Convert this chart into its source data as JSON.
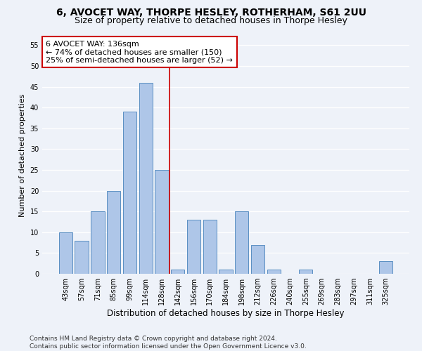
{
  "title1": "6, AVOCET WAY, THORPE HESLEY, ROTHERHAM, S61 2UU",
  "title2": "Size of property relative to detached houses in Thorpe Hesley",
  "xlabel": "Distribution of detached houses by size in Thorpe Hesley",
  "ylabel": "Number of detached properties",
  "categories": [
    "43sqm",
    "57sqm",
    "71sqm",
    "85sqm",
    "99sqm",
    "114sqm",
    "128sqm",
    "142sqm",
    "156sqm",
    "170sqm",
    "184sqm",
    "198sqm",
    "212sqm",
    "226sqm",
    "240sqm",
    "255sqm",
    "269sqm",
    "283sqm",
    "297sqm",
    "311sqm",
    "325sqm"
  ],
  "values": [
    10,
    8,
    15,
    20,
    39,
    46,
    25,
    1,
    13,
    13,
    1,
    15,
    7,
    1,
    0,
    1,
    0,
    0,
    0,
    0,
    3
  ],
  "bar_color": "#aec6e8",
  "bar_edge_color": "#5a8fc2",
  "vline_x": 6.5,
  "vline_color": "#cc0000",
  "annotation_line1": "6 AVOCET WAY: 136sqm",
  "annotation_line2": "← 74% of detached houses are smaller (150)",
  "annotation_line3": "25% of semi-detached houses are larger (52) →",
  "annotation_box_color": "#ffffff",
  "annotation_box_edge": "#cc0000",
  "ylim": [
    0,
    57
  ],
  "yticks": [
    0,
    5,
    10,
    15,
    20,
    25,
    30,
    35,
    40,
    45,
    50,
    55
  ],
  "footer": "Contains HM Land Registry data © Crown copyright and database right 2024.\nContains public sector information licensed under the Open Government Licence v3.0.",
  "bg_color": "#eef2f9",
  "grid_color": "#ffffff",
  "title1_fontsize": 10,
  "title2_fontsize": 9,
  "xlabel_fontsize": 8.5,
  "ylabel_fontsize": 8,
  "tick_fontsize": 7,
  "annotation_fontsize": 8,
  "footer_fontsize": 6.5
}
